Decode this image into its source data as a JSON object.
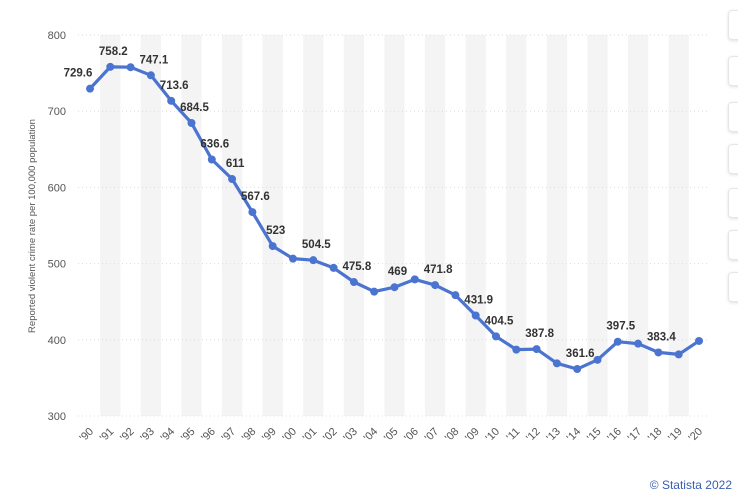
{
  "chart_data": {
    "type": "line",
    "title": "",
    "xlabel": "",
    "ylabel": "Reported violent crime rate per 100,000 population",
    "categories": [
      "'90",
      "'91",
      "'92",
      "'93",
      "'94",
      "'95",
      "'96",
      "'97",
      "'98",
      "'99",
      "'00",
      "'01",
      "'02",
      "'03",
      "'04",
      "'05",
      "'06",
      "'07",
      "'08",
      "'09",
      "'10",
      "'11",
      "'12",
      "'13",
      "'14",
      "'15",
      "'16",
      "'17",
      "'18",
      "'19",
      "'20"
    ],
    "series": [
      {
        "values": [
          729.6,
          758.2,
          757.7,
          747.1,
          713.6,
          684.5,
          636.6,
          611,
          567.6,
          523,
          506.5,
          504.5,
          494.4,
          475.8,
          463.2,
          469,
          479.3,
          471.8,
          458.6,
          431.9,
          404.5,
          387.1,
          387.8,
          369.1,
          361.6,
          373.7,
          397.5,
          394.9,
          383.4,
          380.8,
          398.5
        ],
        "labels": [
          "729.6",
          "758.2",
          "",
          "747.1",
          "713.6",
          "684.5",
          "636.6",
          "611",
          "567.6",
          "523",
          "",
          "504.5",
          "",
          "475.8",
          "",
          "469",
          "",
          "471.8",
          "",
          "431.9",
          "404.5",
          "",
          "387.8",
          "",
          "361.6",
          "",
          "397.5",
          "",
          "383.4",
          "",
          ""
        ]
      }
    ],
    "yticks": [
      300,
      400,
      500,
      600,
      700,
      800
    ],
    "ylim": [
      300,
      800
    ],
    "grid": true,
    "line_color": "#4a74d0"
  },
  "credit": "© Statista 2022"
}
